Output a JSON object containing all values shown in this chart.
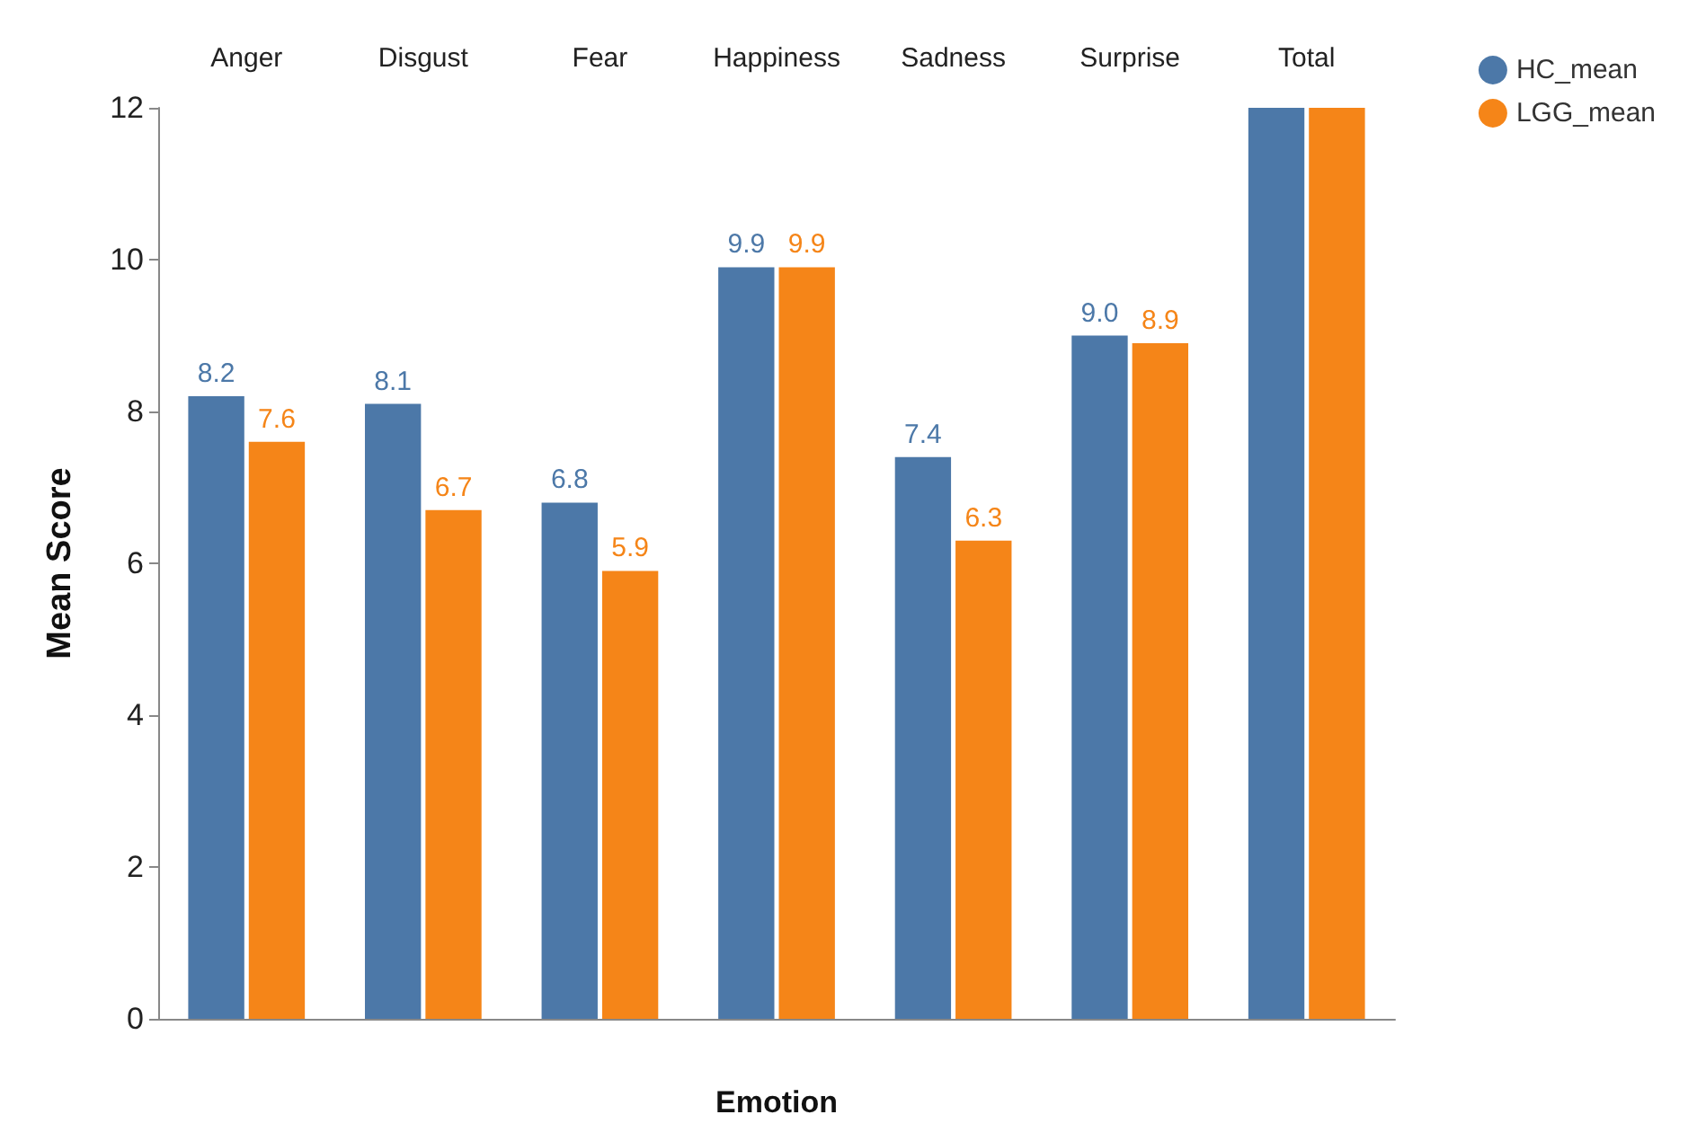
{
  "chart_data": {
    "type": "bar",
    "xlabel": "Emotion",
    "ylabel": "Mean Score",
    "categories": [
      "Anger",
      "Disgust",
      "Fear",
      "Happiness",
      "Sadness",
      "Surprise",
      "Total"
    ],
    "series": [
      {
        "name": "HC_mean",
        "color": "#4c78a8",
        "values": [
          8.2,
          8.1,
          6.8,
          9.9,
          7.4,
          9.0,
          12
        ],
        "value_labels": [
          "8.2",
          "8.1",
          "6.8",
          "9.9",
          "7.4",
          "9.0",
          null
        ]
      },
      {
        "name": "LGG_mean",
        "color": "#f58518",
        "values": [
          7.6,
          6.7,
          5.9,
          9.9,
          6.3,
          8.9,
          12
        ],
        "value_labels": [
          "7.6",
          "6.7",
          "5.9",
          "9.9",
          "6.3",
          "8.9",
          null
        ]
      }
    ],
    "ylim": [
      0,
      12
    ],
    "yticks": [
      0,
      2,
      4,
      6,
      8,
      10,
      12
    ],
    "grid": false,
    "legend": "top right"
  }
}
